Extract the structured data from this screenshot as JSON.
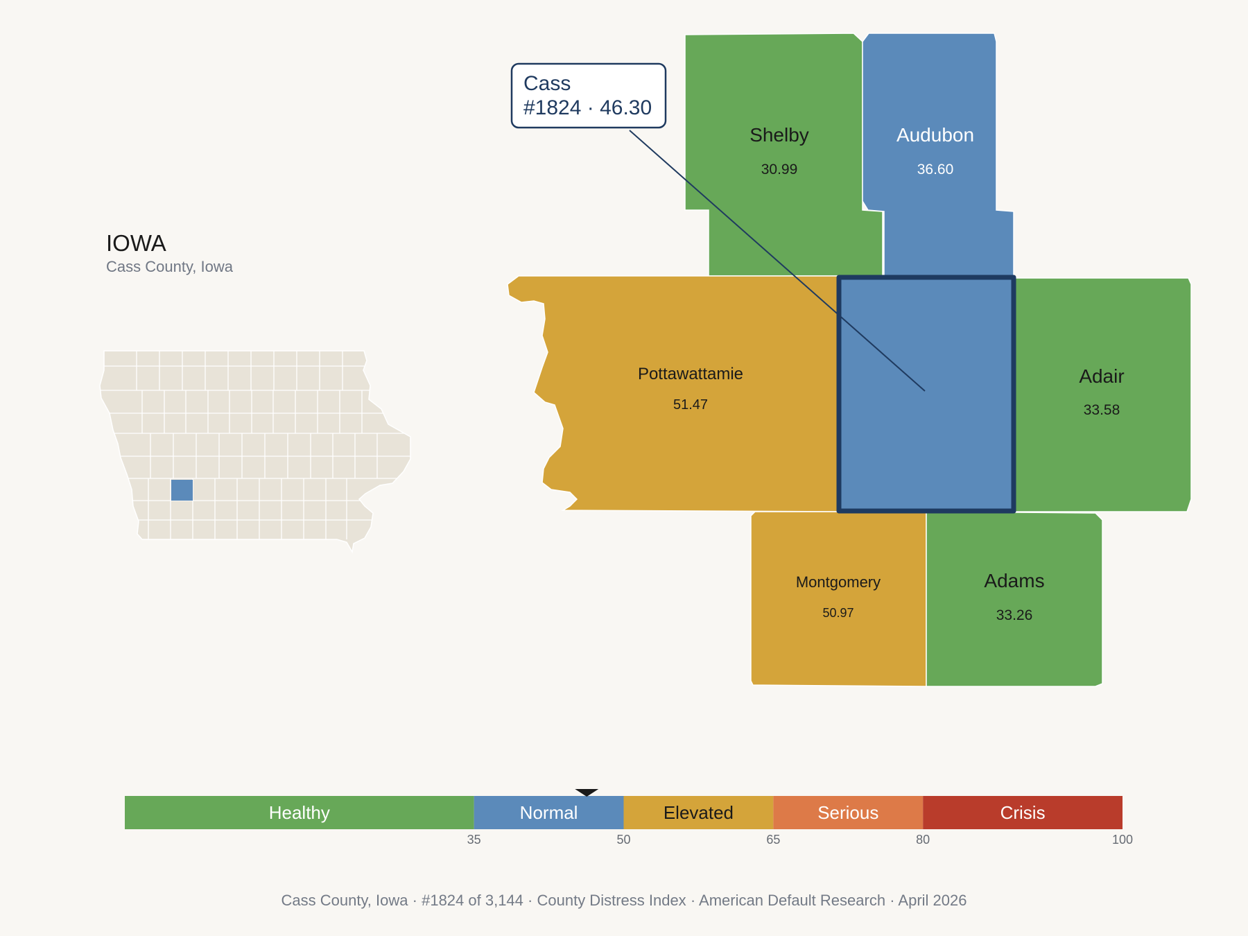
{
  "state": {
    "title": "IOWA",
    "subtitle": "Cass County, Iowa"
  },
  "callout": {
    "name": "Cass",
    "rank_value": "#1824 · 46.30"
  },
  "counties": {
    "shelby": {
      "name": "Shelby",
      "value": "30.99",
      "level": "Healthy"
    },
    "audubon": {
      "name": "Audubon",
      "value": "36.60",
      "level": "Normal"
    },
    "pottawattamie": {
      "name": "Pottawattamie",
      "value": "51.47",
      "level": "Elevated"
    },
    "cass": {
      "name": "Cass",
      "value": "46.30",
      "level": "Normal",
      "highlighted": true
    },
    "adair": {
      "name": "Adair",
      "value": "33.58",
      "level": "Healthy"
    },
    "montgomery": {
      "name": "Montgomery",
      "value": "50.97",
      "level": "Elevated"
    },
    "adams": {
      "name": "Adams",
      "value": "33.26",
      "level": "Healthy"
    }
  },
  "colors": {
    "Healthy": "#67a858",
    "Normal": "#5b8aba",
    "Elevated": "#d4a43a",
    "Serious": "#dd7a48",
    "Crisis": "#b93c2b",
    "highlight_border": "#1e3a60",
    "inset_fill": "#e8e3d8"
  },
  "legend": {
    "bands": [
      {
        "label": "Healthy",
        "from": 0,
        "to": 35
      },
      {
        "label": "Normal",
        "from": 35,
        "to": 50
      },
      {
        "label": "Elevated",
        "from": 50,
        "to": 65
      },
      {
        "label": "Serious",
        "from": 65,
        "to": 80
      },
      {
        "label": "Crisis",
        "from": 80,
        "to": 100
      }
    ],
    "ticks": [
      "35",
      "50",
      "65",
      "80",
      "100"
    ],
    "marker_value": 46.3
  },
  "footer": {
    "county": "Cass County, Iowa",
    "rank": "#1824 of 3,144",
    "index": "County Distress Index",
    "source": "American Default Research",
    "date": "April 2026"
  }
}
